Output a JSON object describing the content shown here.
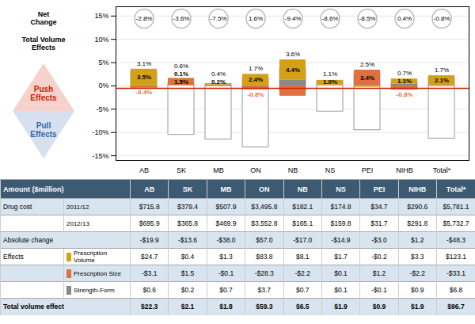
{
  "chart_data": {
    "type": "bar",
    "stacked": true,
    "data_labels": true,
    "grid": true,
    "categories": [
      "AB",
      "SK",
      "MB",
      "ON",
      "NB",
      "NS",
      "PEI",
      "NIHB",
      "Total*"
    ],
    "series": [
      {
        "name": "Prescription\nVolume",
        "color": "#D4A017",
        "values": [
          3.5,
          0.1,
          0.2,
          2.4,
          4.4,
          1.0,
          -0.2,
          1.1,
          2.1
        ],
        "value_labels": [
          "3.5%",
          "0.1%",
          "0.2%",
          "2.4%",
          "4.4%",
          "1.0%",
          null,
          "1.1%",
          "2.1%"
        ]
      },
      {
        "name": "Prescription Size",
        "color": "#E07040",
        "values": [
          -0.4,
          1.5,
          -0.1,
          -0.8,
          -2.2,
          0.1,
          3.4,
          -0.8,
          -0.1
        ],
        "value_labels": [
          "-0.4%",
          "1.5%",
          null,
          "-0.8%",
          null,
          null,
          "3.4%",
          "-0.8%",
          null
        ]
      },
      {
        "name": "Strength-Form",
        "color": "#888888",
        "values": [
          0.1,
          0.1,
          0.2,
          0.1,
          1.2,
          0.1,
          -0.1,
          0.4,
          0.1
        ]
      }
    ],
    "total_volume_effects": {
      "values": [
        3.1,
        0.6,
        0.4,
        1.7,
        3.6,
        1.1,
        2.5,
        0.7,
        1.7
      ],
      "value_labels": [
        "3.1%",
        "0.6%",
        "0.4%",
        "1.7%",
        "3.6%",
        "1.1%",
        "2.5%",
        "0.7%",
        "1.7%"
      ]
    },
    "bar_bottom_extent": [
      -0.4,
      -10.5,
      -11.5,
      -13.2,
      -1.2,
      -5.5,
      -9.5,
      -0.8,
      -11.3
    ],
    "net_change": [
      "-2.8%",
      "-3.6%",
      "-7.5%",
      "1.6%",
      "-9.4%",
      "-8.6%",
      "-8.5%",
      "0.4%",
      "-0.8%"
    ],
    "reference_line": {
      "value": -0.5,
      "color": "#CC2200"
    },
    "ylim": [
      -16,
      17
    ],
    "yticks": [
      {
        "value": -15,
        "label": "-15%"
      },
      {
        "value": -10,
        "label": "-10%"
      },
      {
        "value": -5,
        "label": "-5%"
      },
      {
        "value": 0,
        "label": "0%"
      },
      {
        "value": 5,
        "label": "5%"
      },
      {
        "value": 10,
        "label": "10%"
      },
      {
        "value": 15,
        "label": "15%"
      }
    ],
    "annotations": [
      {
        "text": "Net\nChange"
      },
      {
        "text": "Total Volume\nEffects"
      },
      {
        "text": "Push\nEffects",
        "color": "#CC2200"
      },
      {
        "text": "Pull\nEffects",
        "color": "#3366AA"
      }
    ],
    "table": {
      "header": "Amount ($million)",
      "rows": [
        {
          "label": "Drug cost",
          "sublabel": "2011/12",
          "values": [
            "$715.8",
            "$379.4",
            "$507.9",
            "$3,495.8",
            "$182.1",
            "$174.8",
            "$34.7",
            "$290.6",
            "$5,781.1"
          ]
        },
        {
          "sublabel": "2012/13",
          "values": [
            "$695.9",
            "$365.8",
            "$469.9",
            "$3,552.8",
            "$165.1",
            "$159.8",
            "$31.7",
            "$291.8",
            "$5,732.7"
          ]
        },
        {
          "label": "Absolute change",
          "values": [
            "-$19.9",
            "-$13.6",
            "-$38.0",
            "$57.0",
            "-$17.0",
            "-$14.9",
            "-$3.0",
            "$1.2",
            "-$48.3"
          ]
        },
        {
          "label": "Effects",
          "sublabel": "Prescription\nVolume",
          "color": "#D4A017",
          "values": [
            "$24.7",
            "$0.4",
            "$1.3",
            "$83.8",
            "$8.1",
            "$1.7",
            "-$0.2",
            "$3.3",
            "$123.1"
          ]
        },
        {
          "sublabel": "Prescription Size",
          "color": "#E07040",
          "values": [
            "-$3.1",
            "$1.5",
            "-$0.1",
            "-$28.3",
            "-$2.2",
            "$0.1",
            "$1.2",
            "-$2.2",
            "-$33.1"
          ]
        },
        {
          "sublabel": "Strength-Form",
          "color": "#888888",
          "values": [
            "$0.6",
            "$0.2",
            "$0.7",
            "$3.7",
            "$0.7",
            "$0.1",
            "-$0.1",
            "$0.9",
            "$6.8"
          ]
        },
        {
          "label": "Total volume effect",
          "values": [
            "$22.3",
            "$2.1",
            "$1.8",
            "$59.3",
            "$6.5",
            "$1.9",
            "$0.9",
            "$1.9",
            "$96.7"
          ]
        }
      ]
    }
  }
}
